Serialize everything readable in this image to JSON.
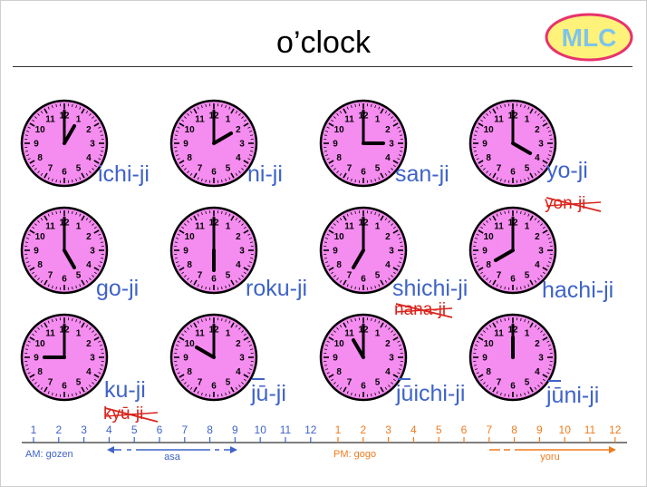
{
  "title": "o’clock",
  "logo": {
    "text": "MLC"
  },
  "clocks": [
    {
      "hour": 1,
      "label": "ichi-ji"
    },
    {
      "hour": 2,
      "label": "ni-ji"
    },
    {
      "hour": 3,
      "label": "san-ji"
    },
    {
      "hour": 4,
      "label": "yo-ji",
      "wrong": "yon-ji"
    },
    {
      "hour": 5,
      "label": "go-ji"
    },
    {
      "hour": 6,
      "label": "roku-ji"
    },
    {
      "hour": 7,
      "label": "shichi-ji",
      "wrong": "nana-ji"
    },
    {
      "hour": 8,
      "label": "hachi-ji"
    },
    {
      "hour": 9,
      "label": "ku-ji",
      "wrong": "kyū-ji"
    },
    {
      "hour": 10,
      "label": "jū-ji"
    },
    {
      "hour": 11,
      "label": "jūichi-ji"
    },
    {
      "hour": 12,
      "label": "jūni-ji"
    }
  ],
  "timeline": {
    "am_numbers": [
      "1",
      "2",
      "3",
      "4",
      "5",
      "6",
      "7",
      "8",
      "9",
      "10",
      "11",
      "12"
    ],
    "pm_numbers": [
      "1",
      "2",
      "3",
      "4",
      "5",
      "6",
      "7",
      "8",
      "9",
      "10",
      "11",
      "12"
    ],
    "am_label": "AM: gozen",
    "pm_label": "PM: gogo",
    "asa_label": "asa",
    "yoru_label": "yoru"
  },
  "colors": {
    "clock_face": "#f58cf0",
    "label_blue": "#3f63c9",
    "wrong_red": "#d9251d",
    "am_blue": "#3f63c9",
    "pm_orange": "#f07b1e"
  }
}
